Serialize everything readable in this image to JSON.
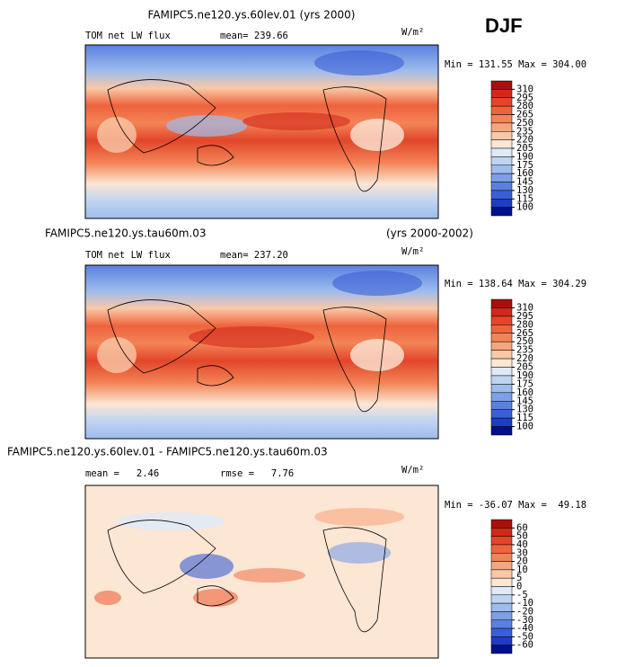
{
  "header": {
    "season": "DJF"
  },
  "colors": [
    "#a8100c",
    "#d2281a",
    "#e2462a",
    "#ee633c",
    "#f38456",
    "#f6a67e",
    "#f9c8a6",
    "#fce6d4",
    "#dfeaf8",
    "#bfd4f1",
    "#9ebcec",
    "#7c9fe7",
    "#5a80e0",
    "#3a5fd5",
    "#1e3cc4",
    "#00108a"
  ],
  "panels": [
    {
      "title": "FAMIPC5.ne120.ys.60lev.01 (yrs 2000)",
      "variable": "TOM net LW flux",
      "mean": "mean= 239.66",
      "units": "W/m²",
      "min_max": "Min = 131.55 Max = 304.00",
      "levels": [
        310,
        295,
        280,
        265,
        250,
        235,
        220,
        205,
        190,
        175,
        160,
        145,
        130,
        115,
        100
      ]
    },
    {
      "title": "FAMIPC5.ne120.ys.tau60m.03",
      "title_right": "(yrs 2000-2002)",
      "variable": "TOM net LW flux",
      "mean": "mean= 237.20",
      "units": "W/m²",
      "min_max": "Min = 138.64 Max = 304.29",
      "levels": [
        310,
        295,
        280,
        265,
        250,
        235,
        220,
        205,
        190,
        175,
        160,
        145,
        130,
        115,
        100
      ]
    },
    {
      "title": "FAMIPC5.ne120.ys.60lev.01 - FAMIPC5.ne120.ys.tau60m.03",
      "mean": "mean =   2.46",
      "rmse": "rmse =   7.76",
      "units": "W/m²",
      "min_max": "Min = -36.07 Max =  49.18",
      "levels": [
        60,
        50,
        40,
        30,
        20,
        10,
        5,
        0,
        -5,
        -10,
        -20,
        -30,
        -40,
        -50,
        -60
      ]
    }
  ]
}
